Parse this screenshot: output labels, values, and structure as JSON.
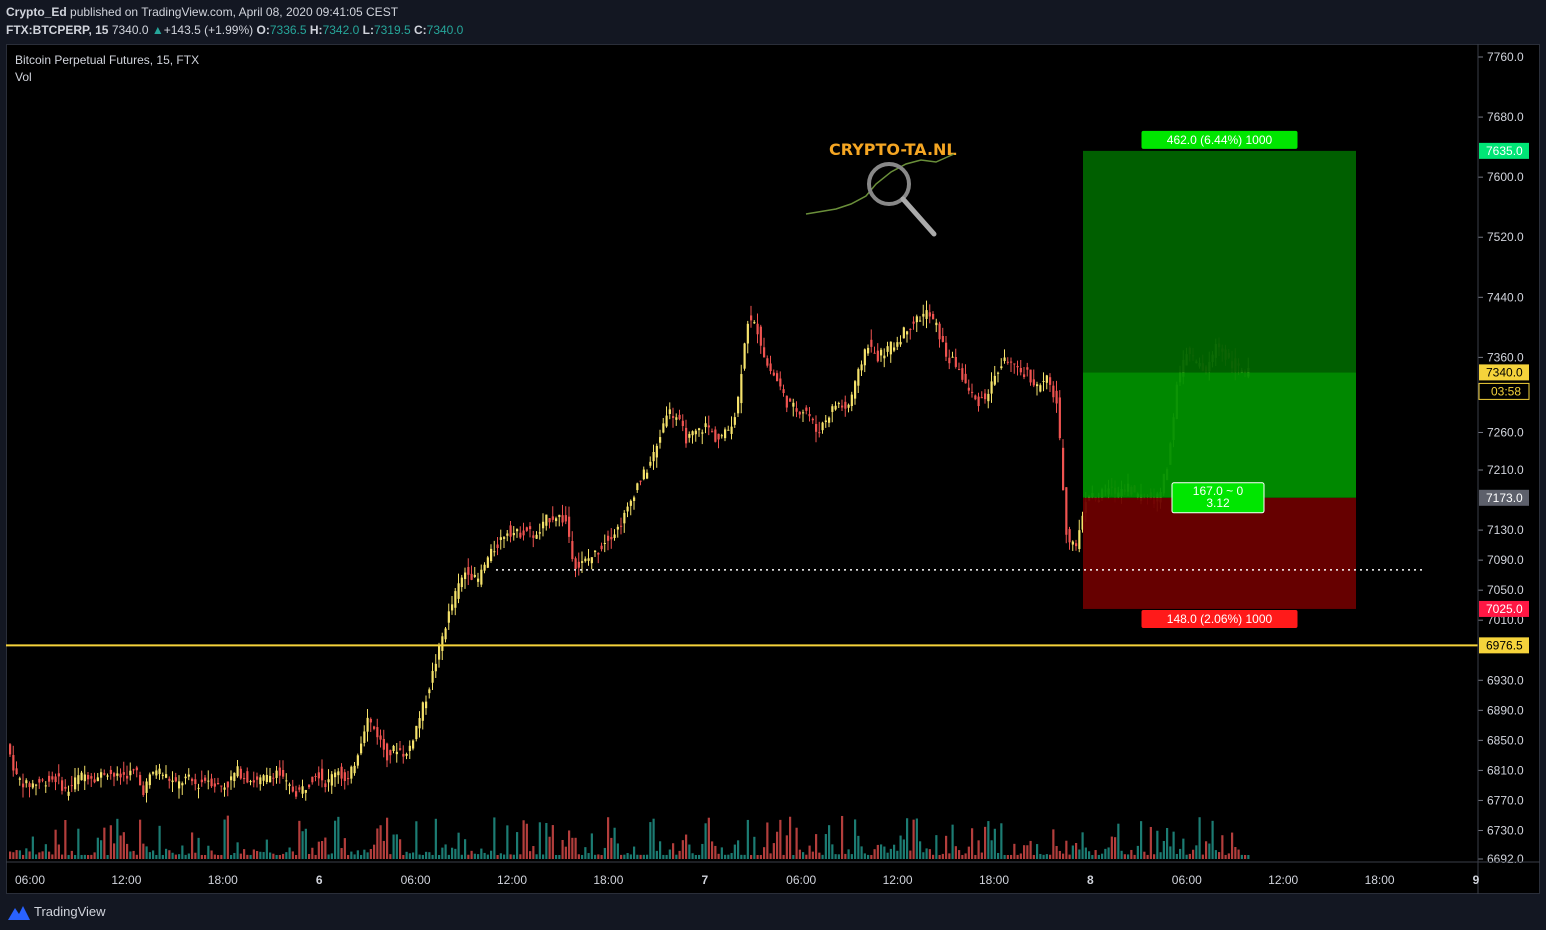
{
  "header": {
    "author": "Crypto_Ed",
    "published_text": "published on TradingView.com, April 08, 2020 09:41:05 CEST",
    "symbol": "FTX:BTCPERP, 15",
    "last": "7340.0",
    "change": "+143.5 (+1.99%)",
    "o_label": "O:",
    "o_value": "7336.5",
    "h_label": "H:",
    "h_value": "7342.0",
    "l_label": "L:",
    "l_value": "7319.5",
    "c_label": "C:",
    "c_value": "7340.0"
  },
  "legend": {
    "title": "Bitcoin Perpetual Futures, 15, FTX",
    "volume": "Vol"
  },
  "footer": {
    "brand": "TradingView"
  },
  "colors": {
    "up": "#f5e26b",
    "down": "#ef5350",
    "vol_up": "#26a69a",
    "vol_down": "#ef5350",
    "support_line": "#f5d33b",
    "profit_zone": "#00ff00",
    "loss_zone": "#ff0000",
    "watermark": "#f5a623"
  },
  "chart_data": {
    "type": "candlestick",
    "y_axis": {
      "min": 6692,
      "max": 7760,
      "ticks": [
        "7760.0",
        "7680.0",
        "7600.0",
        "7520.0",
        "7440.0",
        "7360.0",
        "7260.0",
        "7210.0",
        "7130.0",
        "7090.0",
        "7050.0",
        "7010.0",
        "6930.0",
        "6890.0",
        "6850.0",
        "6810.0",
        "6770.0",
        "6730.0",
        "6692.0"
      ]
    },
    "x_axis": {
      "ticks": [
        "06:00",
        "12:00",
        "18:00",
        "6",
        "06:00",
        "12:00",
        "18:00",
        "7",
        "06:00",
        "12:00",
        "18:00",
        "8",
        "06:00",
        "12:00",
        "18:00",
        "9"
      ]
    },
    "price_labels": [
      {
        "value": 7635.0,
        "text": "7635.0",
        "color": "#00e676"
      },
      {
        "value": 7340.0,
        "text": "7340.0",
        "color": "#f5d33b",
        "countdown": "03:58"
      },
      {
        "value": 7173.0,
        "text": "7173.0",
        "color": "#5d606b"
      },
      {
        "value": 7025.0,
        "text": "7025.0",
        "color": "#ff1744"
      },
      {
        "value": 6976.5,
        "text": "6976.5",
        "color": "#f5d33b"
      }
    ],
    "support_level": 6976.5,
    "dotted_level": 7077,
    "position": {
      "entry": 7173.0,
      "target": 7635.0,
      "stop": 7025.0,
      "target_label": "462.0 (6.44%) 1000",
      "stop_label": "148.0 (2.06%) 1000",
      "pnl_label": "167.0 ~ 0",
      "rr_label": "3.12"
    },
    "watermark_text": "CRYPTO-TA.NL",
    "keyframes": [
      [
        0,
        6845
      ],
      [
        10,
        6800
      ],
      [
        20,
        6790
      ],
      [
        35,
        6795
      ],
      [
        50,
        6800
      ],
      [
        60,
        6780
      ],
      [
        70,
        6800
      ],
      [
        80,
        6805
      ],
      [
        90,
        6800
      ],
      [
        100,
        6810
      ],
      [
        110,
        6800
      ],
      [
        120,
        6805
      ],
      [
        130,
        6808
      ],
      [
        135,
        6780
      ],
      [
        145,
        6805
      ],
      [
        150,
        6812
      ],
      [
        170,
        6790
      ],
      [
        180,
        6800
      ],
      [
        190,
        6790
      ],
      [
        200,
        6800
      ],
      [
        210,
        6790
      ],
      [
        220,
        6790
      ],
      [
        230,
        6810
      ],
      [
        240,
        6800
      ],
      [
        250,
        6795
      ],
      [
        260,
        6800
      ],
      [
        270,
        6810
      ],
      [
        280,
        6790
      ],
      [
        290,
        6780
      ],
      [
        300,
        6790
      ],
      [
        310,
        6810
      ],
      [
        320,
        6790
      ],
      [
        330,
        6815
      ],
      [
        340,
        6790
      ],
      [
        350,
        6830
      ],
      [
        360,
        6880
      ],
      [
        370,
        6860
      ],
      [
        380,
        6830
      ],
      [
        390,
        6840
      ],
      [
        400,
        6830
      ],
      [
        410,
        6870
      ],
      [
        420,
        6910
      ],
      [
        430,
        6960
      ],
      [
        440,
        7010
      ],
      [
        450,
        7050
      ],
      [
        460,
        7080
      ],
      [
        470,
        7060
      ],
      [
        480,
        7090
      ],
      [
        490,
        7110
      ],
      [
        500,
        7130
      ],
      [
        510,
        7125
      ],
      [
        520,
        7130
      ],
      [
        530,
        7120
      ],
      [
        540,
        7145
      ],
      [
        550,
        7150
      ],
      [
        560,
        7140
      ],
      [
        565,
        7100
      ],
      [
        570,
        7080
      ],
      [
        580,
        7090
      ],
      [
        590,
        7100
      ],
      [
        600,
        7120
      ],
      [
        610,
        7130
      ],
      [
        620,
        7155
      ],
      [
        630,
        7190
      ],
      [
        640,
        7210
      ],
      [
        650,
        7240
      ],
      [
        660,
        7290
      ],
      [
        670,
        7280
      ],
      [
        680,
        7250
      ],
      [
        690,
        7260
      ],
      [
        700,
        7270
      ],
      [
        710,
        7250
      ],
      [
        720,
        7260
      ],
      [
        730,
        7290
      ],
      [
        740,
        7410
      ],
      [
        750,
        7400
      ],
      [
        760,
        7350
      ],
      [
        770,
        7330
      ],
      [
        780,
        7300
      ],
      [
        790,
        7290
      ],
      [
        800,
        7290
      ],
      [
        810,
        7260
      ],
      [
        820,
        7280
      ],
      [
        830,
        7300
      ],
      [
        840,
        7290
      ],
      [
        850,
        7330
      ],
      [
        860,
        7380
      ],
      [
        870,
        7360
      ],
      [
        880,
        7370
      ],
      [
        890,
        7380
      ],
      [
        900,
        7400
      ],
      [
        910,
        7410
      ],
      [
        920,
        7420
      ],
      [
        930,
        7400
      ],
      [
        940,
        7360
      ],
      [
        950,
        7350
      ],
      [
        960,
        7320
      ],
      [
        970,
        7300
      ],
      [
        980,
        7310
      ],
      [
        990,
        7340
      ],
      [
        1000,
        7360
      ],
      [
        1010,
        7340
      ],
      [
        1020,
        7340
      ],
      [
        1030,
        7320
      ],
      [
        1040,
        7330
      ],
      [
        1050,
        7300
      ],
      [
        1060,
        7120
      ],
      [
        1070,
        7110
      ],
      [
        1080,
        7180
      ],
      [
        1090,
        7170
      ],
      [
        1100,
        7185
      ],
      [
        1110,
        7180
      ],
      [
        1120,
        7190
      ],
      [
        1130,
        7175
      ],
      [
        1140,
        7175
      ],
      [
        1150,
        7170
      ],
      [
        1160,
        7210
      ],
      [
        1170,
        7320
      ],
      [
        1180,
        7370
      ],
      [
        1190,
        7350
      ],
      [
        1200,
        7340
      ],
      [
        1210,
        7380
      ],
      [
        1220,
        7360
      ],
      [
        1230,
        7345
      ],
      [
        1240,
        7340
      ]
    ]
  }
}
